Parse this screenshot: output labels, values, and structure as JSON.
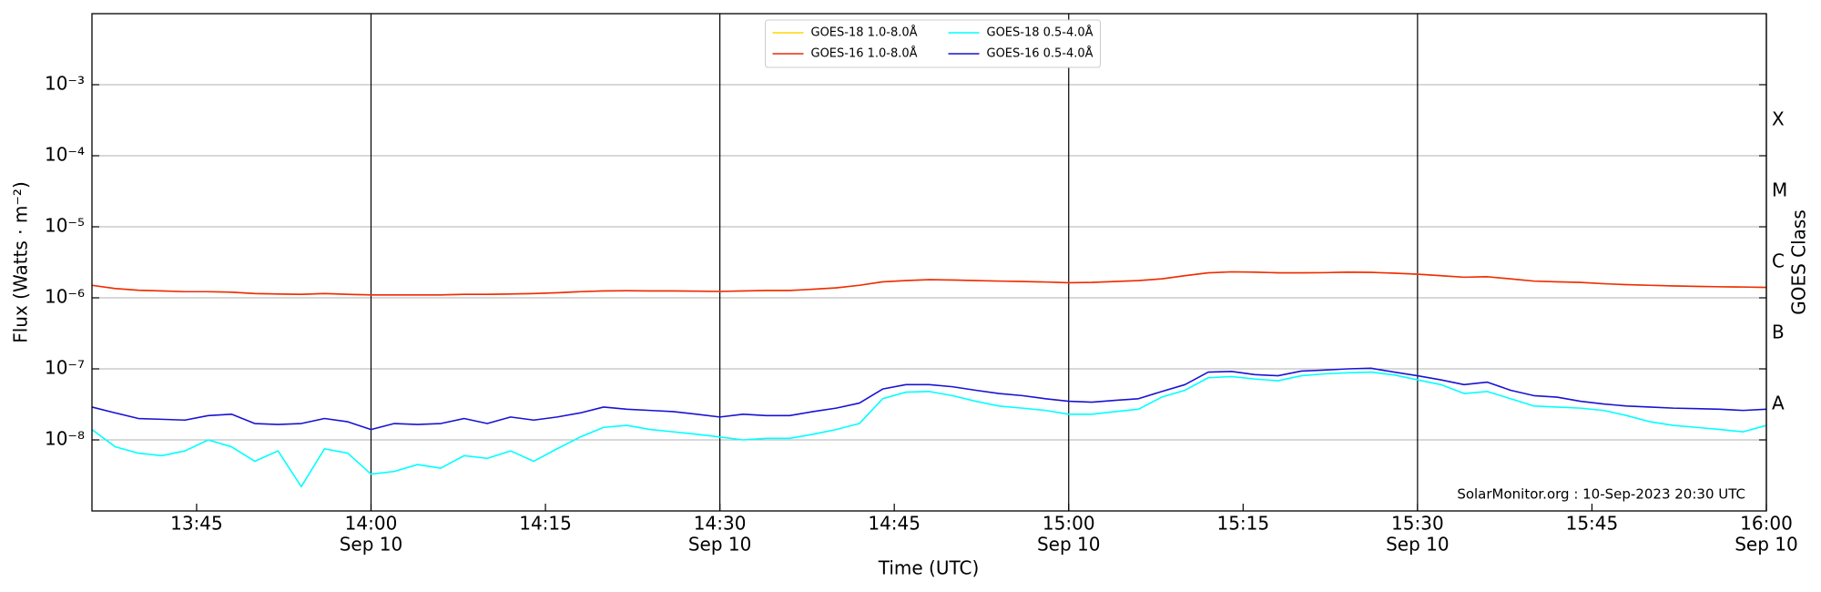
{
  "chart_data": {
    "type": "line",
    "xlabel": "Time (UTC)",
    "ylabel": "Flux (Watts · m⁻²)",
    "y2label": "GOES Class",
    "annotation": "SolarMonitor.org : 10-Sep-2023 20:30 UTC",
    "log_y": true,
    "grid": true,
    "legend": "upper center",
    "xlim": [
      "13:36",
      "16:00"
    ],
    "xticks": [
      {
        "value": "13:45",
        "label": "13:45"
      },
      {
        "value": "14:00",
        "label": "14:00",
        "date": "Sep 10"
      },
      {
        "value": "14:15",
        "label": "14:15"
      },
      {
        "value": "14:30",
        "label": "14:30",
        "date": "Sep 10"
      },
      {
        "value": "14:45",
        "label": "14:45"
      },
      {
        "value": "15:00",
        "label": "15:00",
        "date": "Sep 10"
      },
      {
        "value": "15:15",
        "label": "15:15"
      },
      {
        "value": "15:30",
        "label": "15:30",
        "date": "Sep 10"
      },
      {
        "value": "15:45",
        "label": "15:45"
      },
      {
        "value": "16:00",
        "label": "16:00",
        "date": "Sep 10"
      }
    ],
    "ylim": [
      1e-09,
      0.01
    ],
    "yticks": [
      {
        "value": 1e-08,
        "label": "10⁻⁸"
      },
      {
        "value": 1e-07,
        "label": "10⁻⁷"
      },
      {
        "value": 1e-06,
        "label": "10⁻⁶"
      },
      {
        "value": 1e-05,
        "label": "10⁻⁵"
      },
      {
        "value": 0.0001,
        "label": "10⁻⁴"
      },
      {
        "value": 0.001,
        "label": "10⁻³"
      }
    ],
    "y2lim": [
      1e-09,
      0.01
    ],
    "y2ticks": [
      {
        "value": 3.16e-08,
        "label": "A"
      },
      {
        "value": 3.16e-07,
        "label": "B"
      },
      {
        "value": 3.16e-06,
        "label": "C"
      },
      {
        "value": 3.16e-05,
        "label": "M"
      },
      {
        "value": 0.000316,
        "label": "X"
      }
    ],
    "x": [
      "13:36",
      "13:38",
      "13:40",
      "13:42",
      "13:44",
      "13:46",
      "13:48",
      "13:50",
      "13:52",
      "13:54",
      "13:56",
      "13:58",
      "14:00",
      "14:02",
      "14:04",
      "14:06",
      "14:08",
      "14:10",
      "14:12",
      "14:14",
      "14:16",
      "14:18",
      "14:20",
      "14:22",
      "14:24",
      "14:26",
      "14:28",
      "14:30",
      "14:32",
      "14:34",
      "14:36",
      "14:38",
      "14:40",
      "14:42",
      "14:44",
      "14:46",
      "14:48",
      "14:50",
      "14:52",
      "14:54",
      "14:56",
      "14:58",
      "15:00",
      "15:02",
      "15:04",
      "15:06",
      "15:08",
      "15:10",
      "15:12",
      "15:14",
      "15:16",
      "15:18",
      "15:20",
      "15:22",
      "15:24",
      "15:26",
      "15:28",
      "15:30",
      "15:32",
      "15:34",
      "15:36",
      "15:38",
      "15:40",
      "15:42",
      "15:44",
      "15:46",
      "15:48",
      "15:50",
      "15:52",
      "15:54",
      "15:56",
      "15:58",
      "16:00"
    ],
    "series": [
      {
        "name": "GOES-18 1.0-8.0Å",
        "color": "#ffd700",
        "values": [
          1.5e-06,
          1.35e-06,
          1.28e-06,
          1.25e-06,
          1.22e-06,
          1.22e-06,
          1.2e-06,
          1.15e-06,
          1.13e-06,
          1.12e-06,
          1.15e-06,
          1.12e-06,
          1.1e-06,
          1.1e-06,
          1.1e-06,
          1.1e-06,
          1.12e-06,
          1.12e-06,
          1.13e-06,
          1.15e-06,
          1.18e-06,
          1.22e-06,
          1.25e-06,
          1.26e-06,
          1.25e-06,
          1.25e-06,
          1.24e-06,
          1.23e-06,
          1.25e-06,
          1.27e-06,
          1.27e-06,
          1.32e-06,
          1.38e-06,
          1.5e-06,
          1.68e-06,
          1.75e-06,
          1.8e-06,
          1.78e-06,
          1.75e-06,
          1.72e-06,
          1.7e-06,
          1.67e-06,
          1.63e-06,
          1.65e-06,
          1.7e-06,
          1.75e-06,
          1.85e-06,
          2.05e-06,
          2.25e-06,
          2.32e-06,
          2.3e-06,
          2.25e-06,
          2.25e-06,
          2.26e-06,
          2.3e-06,
          2.28e-06,
          2.22e-06,
          2.15e-06,
          2.05e-06,
          1.95e-06,
          1.98e-06,
          1.85e-06,
          1.72e-06,
          1.68e-06,
          1.65e-06,
          1.58e-06,
          1.53e-06,
          1.5e-06,
          1.47e-06,
          1.45e-06,
          1.43e-06,
          1.42e-06,
          1.4e-06
        ]
      },
      {
        "name": "GOES-16 1.0-8.0Å",
        "color": "#ee2a10",
        "values": [
          1.5e-06,
          1.35e-06,
          1.28e-06,
          1.25e-06,
          1.22e-06,
          1.22e-06,
          1.2e-06,
          1.15e-06,
          1.13e-06,
          1.12e-06,
          1.15e-06,
          1.12e-06,
          1.1e-06,
          1.1e-06,
          1.1e-06,
          1.1e-06,
          1.12e-06,
          1.12e-06,
          1.13e-06,
          1.15e-06,
          1.18e-06,
          1.22e-06,
          1.25e-06,
          1.26e-06,
          1.25e-06,
          1.25e-06,
          1.24e-06,
          1.23e-06,
          1.25e-06,
          1.27e-06,
          1.27e-06,
          1.32e-06,
          1.38e-06,
          1.5e-06,
          1.68e-06,
          1.75e-06,
          1.8e-06,
          1.78e-06,
          1.75e-06,
          1.72e-06,
          1.7e-06,
          1.67e-06,
          1.63e-06,
          1.65e-06,
          1.7e-06,
          1.75e-06,
          1.85e-06,
          2.05e-06,
          2.25e-06,
          2.32e-06,
          2.3e-06,
          2.25e-06,
          2.25e-06,
          2.26e-06,
          2.3e-06,
          2.28e-06,
          2.22e-06,
          2.15e-06,
          2.05e-06,
          1.95e-06,
          1.98e-06,
          1.85e-06,
          1.72e-06,
          1.68e-06,
          1.65e-06,
          1.58e-06,
          1.53e-06,
          1.5e-06,
          1.47e-06,
          1.45e-06,
          1.43e-06,
          1.42e-06,
          1.4e-06
        ]
      },
      {
        "name": "GOES-18 0.5-4.0Å",
        "color": "#00ffff",
        "values": [
          1.4e-08,
          8e-09,
          6.5e-09,
          6e-09,
          7e-09,
          1e-08,
          8e-09,
          5e-09,
          7e-09,
          2.2e-09,
          7.5e-09,
          6.5e-09,
          3.3e-09,
          3.6e-09,
          4.5e-09,
          4e-09,
          6e-09,
          5.5e-09,
          7e-09,
          5e-09,
          7.5e-09,
          1.1e-08,
          1.5e-08,
          1.6e-08,
          1.4e-08,
          1.3e-08,
          1.2e-08,
          1.1e-08,
          1e-08,
          1.05e-08,
          1.05e-08,
          1.2e-08,
          1.4e-08,
          1.7e-08,
          3.8e-08,
          4.7e-08,
          4.8e-08,
          4.2e-08,
          3.5e-08,
          3e-08,
          2.8e-08,
          2.6e-08,
          2.3e-08,
          2.3e-08,
          2.5e-08,
          2.7e-08,
          4e-08,
          5e-08,
          7.5e-08,
          7.8e-08,
          7.2e-08,
          6.8e-08,
          8e-08,
          8.5e-08,
          8.8e-08,
          9e-08,
          8.2e-08,
          7e-08,
          6e-08,
          4.5e-08,
          4.8e-08,
          3.8e-08,
          3e-08,
          2.9e-08,
          2.8e-08,
          2.6e-08,
          2.2e-08,
          1.8e-08,
          1.6e-08,
          1.5e-08,
          1.4e-08,
          1.3e-08,
          1.6e-08
        ]
      },
      {
        "name": "GOES-16 0.5-4.0Å",
        "color": "#1a12d4",
        "values": [
          2.9e-08,
          2.4e-08,
          2e-08,
          1.95e-08,
          1.9e-08,
          2.2e-08,
          2.3e-08,
          1.7e-08,
          1.65e-08,
          1.7e-08,
          2e-08,
          1.8e-08,
          1.4e-08,
          1.7e-08,
          1.65e-08,
          1.7e-08,
          2e-08,
          1.7e-08,
          2.1e-08,
          1.9e-08,
          2.1e-08,
          2.4e-08,
          2.9e-08,
          2.7e-08,
          2.6e-08,
          2.5e-08,
          2.3e-08,
          2.1e-08,
          2.3e-08,
          2.2e-08,
          2.2e-08,
          2.5e-08,
          2.8e-08,
          3.3e-08,
          5.2e-08,
          6e-08,
          6e-08,
          5.6e-08,
          5e-08,
          4.5e-08,
          4.2e-08,
          3.8e-08,
          3.5e-08,
          3.4e-08,
          3.6e-08,
          3.8e-08,
          4.8e-08,
          6e-08,
          9e-08,
          9.2e-08,
          8.3e-08,
          8e-08,
          9.3e-08,
          9.6e-08,
          1e-07,
          1.02e-07,
          9e-08,
          8e-08,
          7e-08,
          6e-08,
          6.5e-08,
          5e-08,
          4.2e-08,
          4e-08,
          3.5e-08,
          3.2e-08,
          3e-08,
          2.9e-08,
          2.8e-08,
          2.75e-08,
          2.7e-08,
          2.6e-08,
          2.7e-08
        ]
      }
    ]
  }
}
